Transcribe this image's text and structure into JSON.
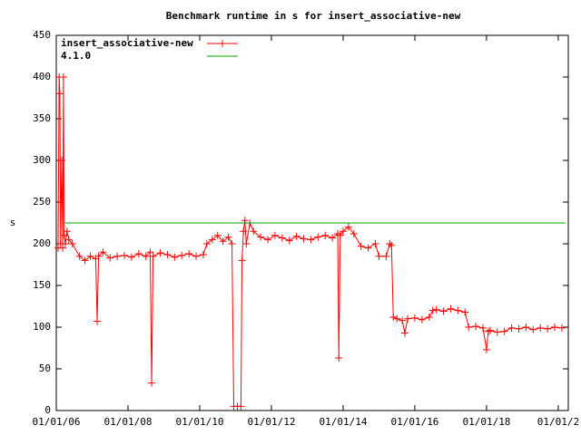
{
  "chart_data": {
    "type": "line",
    "title": "Benchmark runtime in s for insert_associative-new",
    "y_label": "s",
    "xlim": [
      2006,
      2020.28
    ],
    "xticks": [
      {
        "value": 2006,
        "label": "01/01/06"
      },
      {
        "value": 2008,
        "label": "01/01/08"
      },
      {
        "value": 2010,
        "label": "01/01/10"
      },
      {
        "value": 2012,
        "label": "01/01/12"
      },
      {
        "value": 2014,
        "label": "01/01/14"
      },
      {
        "value": 2016,
        "label": "01/01/16"
      },
      {
        "value": 2018,
        "label": "01/01/18"
      },
      {
        "value": 2020,
        "label": "01/01/2"
      }
    ],
    "ylim": [
      0,
      450
    ],
    "yticks": [
      0,
      50,
      100,
      150,
      200,
      250,
      300,
      350,
      400,
      450
    ],
    "grid": false,
    "legend": "top-left",
    "series": [
      {
        "name": "insert_associative-new",
        "color": "#ff0000",
        "marker": "+",
        "x": [
          2006.05,
          2006.08,
          2006.1,
          2006.12,
          2006.15,
          2006.18,
          2006.2,
          2006.22,
          2006.25,
          2006.3,
          2006.35,
          2006.45,
          2006.65,
          2006.8,
          2006.95,
          2007.1,
          2007.14,
          2007.18,
          2007.3,
          2007.5,
          2007.7,
          2007.9,
          2008.1,
          2008.3,
          2008.5,
          2008.62,
          2008.66,
          2008.7,
          2008.9,
          2009.1,
          2009.3,
          2009.5,
          2009.7,
          2009.9,
          2010.1,
          2010.2,
          2010.35,
          2010.5,
          2010.65,
          2010.8,
          2010.9,
          2010.95,
          2011.05,
          2011.15,
          2011.18,
          2011.22,
          2011.26,
          2011.3,
          2011.4,
          2011.5,
          2011.7,
          2011.9,
          2012.1,
          2012.3,
          2012.5,
          2012.7,
          2012.9,
          2013.1,
          2013.3,
          2013.5,
          2013.7,
          2013.85,
          2013.88,
          2013.92,
          2014.0,
          2014.15,
          2014.3,
          2014.5,
          2014.7,
          2014.9,
          2015.0,
          2015.2,
          2015.3,
          2015.35,
          2015.4,
          2015.5,
          2015.65,
          2015.72,
          2015.8,
          2016.0,
          2016.2,
          2016.4,
          2016.5,
          2016.6,
          2016.8,
          2017.0,
          2017.2,
          2017.4,
          2017.5,
          2017.7,
          2017.9,
          2018.0,
          2018.05,
          2018.1,
          2018.3,
          2018.5,
          2018.7,
          2018.9,
          2019.1,
          2019.3,
          2019.5,
          2019.7,
          2019.9,
          2020.1
        ],
        "values": [
          195,
          400,
          380,
          200,
          300,
          195,
          400,
          210,
          200,
          215,
          205,
          200,
          185,
          180,
          185,
          182,
          107,
          185,
          190,
          183,
          185,
          186,
          184,
          188,
          185,
          190,
          33,
          185,
          189,
          187,
          184,
          186,
          188,
          185,
          187,
          200,
          205,
          210,
          203,
          208,
          200,
          5,
          5,
          5,
          180,
          215,
          228,
          200,
          225,
          215,
          208,
          205,
          210,
          207,
          204,
          209,
          206,
          205,
          208,
          210,
          207,
          212,
          63,
          210,
          215,
          220,
          212,
          197,
          195,
          200,
          185,
          185,
          200,
          198,
          112,
          110,
          108,
          93,
          110,
          111,
          109,
          112,
          120,
          121,
          119,
          122,
          120,
          118,
          100,
          101,
          99,
          73,
          95,
          96,
          94,
          95,
          99,
          98,
          100,
          97,
          99,
          98,
          100,
          99
        ]
      },
      {
        "name": "4.1.0",
        "color": "#00a000",
        "x": [
          2006.2,
          2020.2
        ],
        "values": [
          225,
          225
        ]
      }
    ]
  }
}
